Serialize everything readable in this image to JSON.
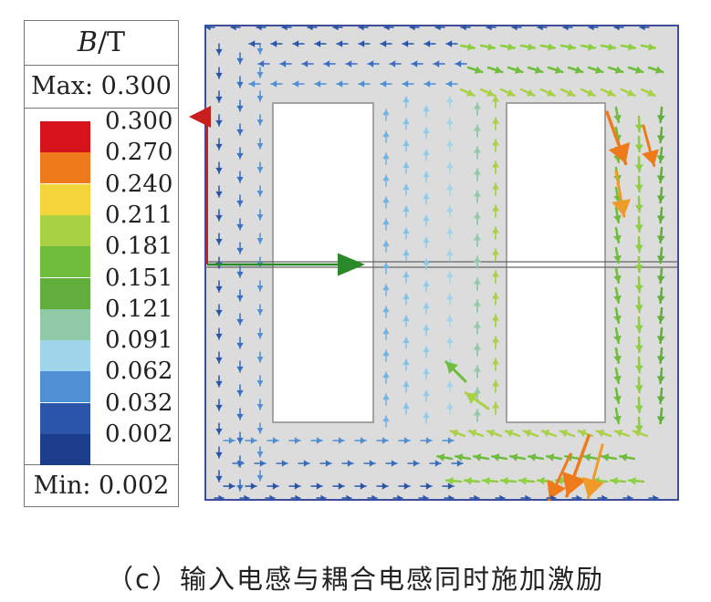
{
  "legend": {
    "quantity": "B",
    "unit_suffix": "/T",
    "max_label": "Max: 0.300",
    "min_label": "Min: 0.002",
    "ticks": [
      "0.300",
      "0.270",
      "0.240",
      "0.211",
      "0.181",
      "0.151",
      "0.121",
      "0.091",
      "0.062",
      "0.032",
      "0.002"
    ],
    "colors": [
      "#d6131b",
      "#ee7a1c",
      "#f3d43b",
      "#a9d144",
      "#6fbd3c",
      "#62ae3c",
      "#8fc9a6",
      "#9fd5ea",
      "#4f8fd3",
      "#2b55a8",
      "#1b3d8c"
    ]
  },
  "caption": "（c）输入电感与耦合电感同时施加激励",
  "colors": {
    "core": "#dcdcdc",
    "window": "#ffffff",
    "axis_y": "#c81e1e",
    "axis_x": "#2a8a2a"
  }
}
